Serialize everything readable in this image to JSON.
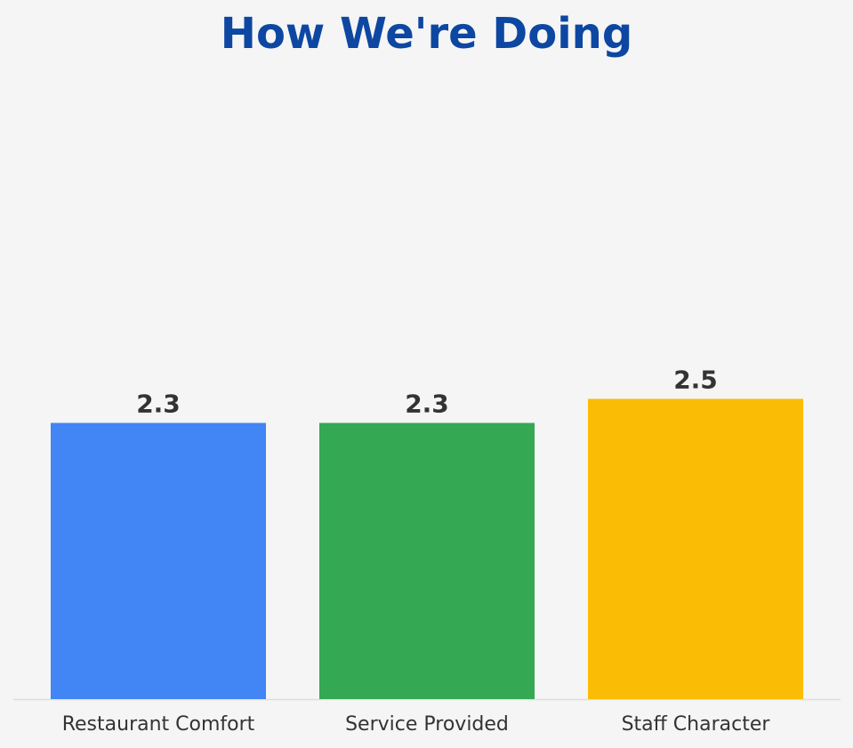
{
  "chart_data": {
    "type": "bar",
    "title": "How We're Doing",
    "categories": [
      "Restaurant Comfort",
      "Service Provided",
      "Staff Character"
    ],
    "values": [
      2.3,
      2.3,
      2.5
    ],
    "value_labels": [
      "2.3",
      "2.3",
      "2.5"
    ],
    "bar_colors": [
      "#4285f4",
      "#34a853",
      "#fbbc05"
    ],
    "xlabel": "",
    "ylabel": "",
    "ylim": [
      0,
      5.2
    ],
    "grid": false,
    "legend": "none"
  },
  "colors": {
    "title": "#0d47a1",
    "text": "#333333",
    "baseline": "#dddddd",
    "background": "#f5f5f5"
  }
}
